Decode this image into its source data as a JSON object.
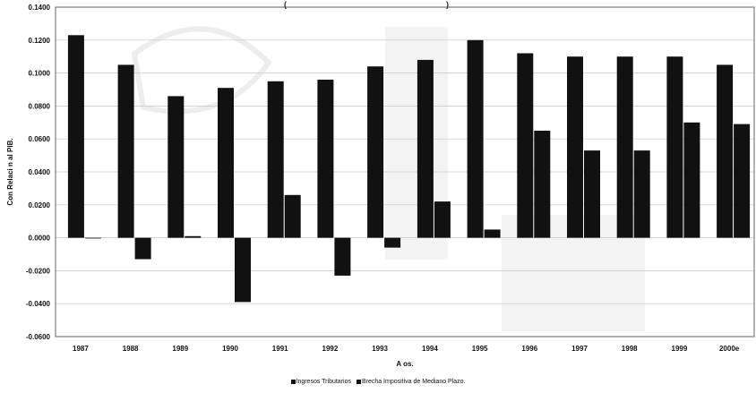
{
  "colors": {
    "bar": "#111111",
    "grid": "#c8c8c8",
    "axis": "#444444",
    "watermark": "#dcdcdc",
    "background": "#ffffff"
  },
  "title_fragments": [
    "(",
    ")"
  ],
  "chart_data": {
    "type": "bar",
    "categories": [
      "1987",
      "1988",
      "1989",
      "1990",
      "1991",
      "1992",
      "1993",
      "1994",
      "1995",
      "1996",
      "1997",
      "1998",
      "1999",
      "2000e"
    ],
    "series": [
      {
        "name": "Ingresos Tributarios",
        "values": [
          0.123,
          0.105,
          0.086,
          0.091,
          0.095,
          0.096,
          0.104,
          0.108,
          0.12,
          0.112,
          0.11,
          0.11,
          0.11,
          0.105
        ]
      },
      {
        "name": "Brecha Impositiva de Mediano Plazo.",
        "values": [
          0.0,
          -0.013,
          0.001,
          -0.039,
          0.026,
          -0.023,
          -0.006,
          0.022,
          0.005,
          0.065,
          0.053,
          0.053,
          0.07,
          0.069
        ]
      }
    ],
    "xlabel": "A os.",
    "ylabel": "Con Relaci n al PIB.",
    "ylim": [
      -0.06,
      0.14
    ],
    "yticks": [
      "0.1400",
      "0.1200",
      "0.1000",
      "0.0800",
      "0.0600",
      "0.0400",
      "0.0200",
      "0.0000",
      "-0.0200",
      "-0.0400",
      "-0.0600"
    ],
    "grid": true,
    "legend_position": "bottom"
  }
}
